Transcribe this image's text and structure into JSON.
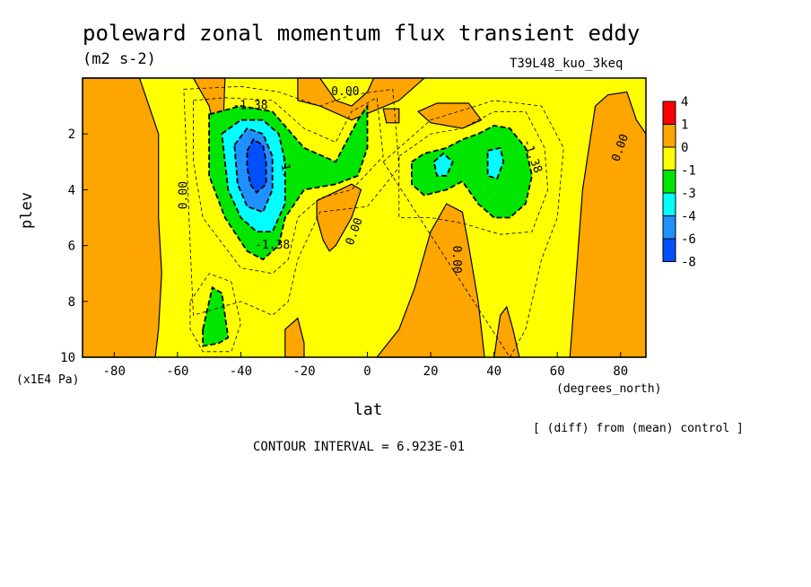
{
  "title": "poleward zonal momentum flux transient eddy",
  "units": "(m2 s-2)",
  "run_label": "T39L48_kuo_3keq",
  "footer_note": "[ (diff) from (mean) control ]",
  "contour_interval": "CONTOUR INTERVAL = 6.923E-01",
  "colors": {
    "c_red": "#ff0000",
    "c_orange": "#ffa500",
    "c_yellow": "#ffff00",
    "c_green": "#00e600",
    "c_cyan": "#00ffff",
    "c_lightblue": "#1e90ff",
    "c_blue": "#0050ff"
  },
  "chart_data": {
    "type": "heatmap",
    "title": "poleward zonal momentum flux transient eddy",
    "xlabel": "lat",
    "xunits": "(degrees_north)",
    "ylabel": "plev",
    "yunits": "(x1E4 Pa)",
    "xlim": [
      -90,
      88
    ],
    "ylim": [
      10,
      0
    ],
    "x_ticks": [
      -80,
      -60,
      -40,
      -20,
      0,
      20,
      40,
      60,
      80
    ],
    "x_tick_labels": [
      "-80",
      "-60",
      "-40",
      "-20",
      "0",
      "20",
      "40",
      "60",
      "80"
    ],
    "y_ticks": [
      2,
      4,
      6,
      8,
      10
    ],
    "y_tick_labels": [
      "2",
      "4",
      "6",
      "8",
      "10"
    ],
    "background_level": "0 to -1",
    "contour_interval": 0.6923,
    "colorbar": {
      "boundaries": [
        "4",
        "1",
        "0",
        "-1",
        "-3",
        "-4",
        "-6",
        "-8"
      ],
      "colors": [
        "#ff0000",
        "#ffa500",
        "#ffff00",
        "#00e600",
        "#00ffff",
        "#1e90ff",
        "#0050ff"
      ]
    },
    "regions": [
      {
        "level": "0 to 1",
        "color": "orange",
        "polygon": [
          [
            -90,
            0
          ],
          [
            -72,
            0
          ],
          [
            -66,
            2
          ],
          [
            -66,
            5
          ],
          [
            -65,
            7
          ],
          [
            -66,
            9
          ],
          [
            -67,
            10
          ],
          [
            -90,
            10
          ]
        ]
      },
      {
        "level": "0 to 1",
        "color": "orange",
        "polygon": [
          [
            -90,
            0
          ],
          [
            -55,
            0
          ],
          [
            -50,
            1
          ],
          [
            -48,
            2
          ],
          [
            -46,
            3
          ],
          [
            -45,
            0
          ]
        ]
      },
      {
        "level": "0 to 1",
        "color": "orange",
        "polygon": [
          [
            -22,
            0
          ],
          [
            -15,
            0
          ],
          [
            -10,
            0.8
          ],
          [
            -5,
            1
          ],
          [
            0,
            0.5
          ],
          [
            2,
            0
          ],
          [
            18,
            0
          ],
          [
            10,
            0.8
          ],
          [
            -5,
            1.5
          ],
          [
            -15,
            1
          ],
          [
            -22,
            0.8
          ]
        ]
      },
      {
        "level": "0 to 1",
        "color": "orange",
        "polygon": [
          [
            5,
            1.1
          ],
          [
            10,
            1.1
          ],
          [
            10,
            1.6
          ],
          [
            6,
            1.6
          ]
        ]
      },
      {
        "level": "0 to 1",
        "color": "orange",
        "polygon": [
          [
            16,
            1.2
          ],
          [
            22,
            0.9
          ],
          [
            32,
            0.9
          ],
          [
            36,
            1.5
          ],
          [
            30,
            1.8
          ],
          [
            20,
            1.6
          ]
        ]
      },
      {
        "level": "0 to 1",
        "color": "orange",
        "polygon": [
          [
            -16,
            4.4
          ],
          [
            -5,
            3.8
          ],
          [
            -2,
            4
          ],
          [
            -5,
            5
          ],
          [
            -10,
            6
          ],
          [
            -12,
            6.2
          ],
          [
            -14,
            5.8
          ],
          [
            -16,
            5
          ]
        ]
      },
      {
        "level": "0 to 1",
        "color": "orange",
        "polygon": [
          [
            3,
            10
          ],
          [
            10,
            9
          ],
          [
            15,
            7.5
          ],
          [
            20,
            5.5
          ],
          [
            25,
            4.5
          ],
          [
            30,
            4.8
          ],
          [
            32,
            6
          ],
          [
            35,
            8
          ],
          [
            37,
            10
          ]
        ]
      },
      {
        "level": "0 to 1",
        "color": "orange",
        "polygon": [
          [
            40,
            10
          ],
          [
            42,
            8.5
          ],
          [
            44,
            8.2
          ],
          [
            46,
            9
          ],
          [
            48,
            10
          ]
        ]
      },
      {
        "level": "0 to 1",
        "color": "orange",
        "polygon": [
          [
            -26,
            9
          ],
          [
            -22,
            8.6
          ],
          [
            -20,
            9.5
          ],
          [
            -20,
            10
          ],
          [
            -26,
            10
          ]
        ]
      },
      {
        "level": "0 to 1",
        "color": "orange",
        "polygon": [
          [
            64,
            10
          ],
          [
            66,
            7
          ],
          [
            68,
            4
          ],
          [
            72,
            1
          ],
          [
            76,
            0.6
          ],
          [
            82,
            0.5
          ],
          [
            85,
            1.5
          ],
          [
            88,
            2
          ],
          [
            88,
            10
          ]
        ]
      },
      {
        "level": "-1 to -3",
        "color": "green",
        "polygon": [
          [
            -50,
            1.3
          ],
          [
            -40,
            1
          ],
          [
            -30,
            1.2
          ],
          [
            -20,
            2.5
          ],
          [
            -10,
            3
          ],
          [
            -3,
            1.5
          ],
          [
            0,
            1
          ],
          [
            0,
            2.5
          ],
          [
            -3,
            3.5
          ],
          [
            -10,
            3.8
          ],
          [
            -20,
            4
          ],
          [
            -26,
            5
          ],
          [
            -28,
            6
          ],
          [
            -33,
            6.5
          ],
          [
            -38,
            6.2
          ],
          [
            -45,
            5
          ],
          [
            -50,
            3.5
          ]
        ]
      },
      {
        "level": "-1 to -3",
        "color": "green",
        "polygon": [
          [
            14,
            3
          ],
          [
            18,
            2.7
          ],
          [
            25,
            2.5
          ],
          [
            30,
            2.2
          ],
          [
            35,
            2
          ],
          [
            40,
            1.7
          ],
          [
            45,
            1.8
          ],
          [
            50,
            2.5
          ],
          [
            52,
            3.5
          ],
          [
            50,
            4.5
          ],
          [
            45,
            5
          ],
          [
            40,
            5
          ],
          [
            35,
            4.5
          ],
          [
            30,
            3.7
          ],
          [
            25,
            4
          ],
          [
            18,
            4.2
          ],
          [
            14,
            3.8
          ]
        ]
      },
      {
        "level": "-1 to -3",
        "color": "green",
        "polygon": [
          [
            -52,
            9
          ],
          [
            -49,
            7.5
          ],
          [
            -46,
            7.7
          ],
          [
            -45,
            8.5
          ],
          [
            -44,
            9.3
          ],
          [
            -47,
            9.5
          ],
          [
            -52,
            9.6
          ]
        ]
      },
      {
        "level": "-3 to -4",
        "color": "cyan",
        "polygon": [
          [
            -46,
            2
          ],
          [
            -40,
            1.5
          ],
          [
            -33,
            1.5
          ],
          [
            -28,
            2
          ],
          [
            -26,
            3
          ],
          [
            -26,
            4.5
          ],
          [
            -30,
            5.5
          ],
          [
            -35,
            5.5
          ],
          [
            -40,
            5
          ],
          [
            -44,
            4
          ],
          [
            -45,
            3
          ]
        ]
      },
      {
        "level": "-3 to -4",
        "color": "cyan",
        "polygon": [
          [
            21,
            3
          ],
          [
            24,
            2.7
          ],
          [
            27,
            3
          ],
          [
            25,
            3.5
          ],
          [
            22,
            3.5
          ]
        ]
      },
      {
        "level": "-3 to -4",
        "color": "cyan",
        "polygon": [
          [
            38,
            2.6
          ],
          [
            42,
            2.5
          ],
          [
            43,
            3
          ],
          [
            41,
            3.6
          ],
          [
            38,
            3.5
          ]
        ]
      },
      {
        "level": "-4 to -6",
        "color": "lightblue",
        "polygon": [
          [
            -42,
            2.4
          ],
          [
            -38,
            1.8
          ],
          [
            -33,
            2
          ],
          [
            -30,
            2.8
          ],
          [
            -30,
            4
          ],
          [
            -33,
            4.8
          ],
          [
            -38,
            4.6
          ],
          [
            -41,
            3.8
          ]
        ]
      },
      {
        "level": "-6 to -8",
        "color": "blue",
        "polygon": [
          [
            -38,
            2.6
          ],
          [
            -36,
            2.2
          ],
          [
            -33,
            2.4
          ],
          [
            -32,
            3
          ],
          [
            -32,
            3.8
          ],
          [
            -35,
            4.1
          ],
          [
            -37,
            3.8
          ],
          [
            -38,
            3.2
          ]
        ]
      }
    ],
    "contour_labels": [
      {
        "text": "0.00",
        "x": -58,
        "y": 4.2,
        "rotate": -90
      },
      {
        "text": "-1.38",
        "x": -37,
        "y": 1.0,
        "rotate": 0
      },
      {
        "text": "-1.38",
        "x": -30,
        "y": 6.0,
        "rotate": 0
      },
      {
        "text": "0.00",
        "x": -7,
        "y": 0.5,
        "rotate": 0
      },
      {
        "text": "0.00",
        "x": -4,
        "y": 5.5,
        "rotate": -70
      },
      {
        "text": "0.00",
        "x": 28,
        "y": 6.5,
        "rotate": 90
      },
      {
        "text": "-1.38",
        "x": 52,
        "y": 2.8,
        "rotate": 70
      },
      {
        "text": "0.00",
        "x": 80,
        "y": 2.5,
        "rotate": -70
      },
      {
        "text": "-1.",
        "x": -26,
        "y": 3.2,
        "rotate": 80
      }
    ],
    "dashed_contours": [
      [
        [
          -55,
          0.8
        ],
        [
          -45,
          0.7
        ],
        [
          -30,
          0.8
        ],
        [
          -20,
          1.8
        ],
        [
          -10,
          2.3
        ],
        [
          -5,
          1.2
        ],
        [
          3,
          0.7
        ],
        [
          5,
          2.8
        ],
        [
          -5,
          4
        ],
        [
          -15,
          4.3
        ],
        [
          -22,
          5
        ],
        [
          -25,
          6.5
        ],
        [
          -30,
          7
        ],
        [
          -40,
          6.8
        ],
        [
          -52,
          5
        ],
        [
          -55,
          3
        ]
      ],
      [
        [
          -58,
          0.4
        ],
        [
          -40,
          0.3
        ],
        [
          -28,
          0.5
        ],
        [
          -15,
          1.0
        ],
        [
          -5,
          0.6
        ],
        [
          8,
          0.4
        ],
        [
          10,
          3.2
        ],
        [
          0,
          4.6
        ],
        [
          -15,
          4.8
        ],
        [
          -22,
          6.5
        ],
        [
          -25,
          8
        ],
        [
          -30,
          8.5
        ],
        [
          -40,
          8
        ],
        [
          -55,
          8.5
        ],
        [
          -56,
          6
        ]
      ],
      [
        [
          10,
          2.8
        ],
        [
          20,
          2
        ],
        [
          30,
          1.8
        ],
        [
          40,
          1.2
        ],
        [
          50,
          1.2
        ],
        [
          56,
          2.5
        ],
        [
          57,
          4
        ],
        [
          52,
          5.5
        ],
        [
          42,
          5.6
        ],
        [
          30,
          5.2
        ],
        [
          20,
          5
        ],
        [
          10,
          5
        ]
      ],
      [
        [
          5,
          3
        ],
        [
          20,
          1.5
        ],
        [
          40,
          0.8
        ],
        [
          55,
          1
        ],
        [
          62,
          2.5
        ],
        [
          60,
          5
        ],
        [
          55,
          6.5
        ],
        [
          50,
          9
        ],
        [
          45,
          10
        ]
      ],
      [
        [
          -56,
          8
        ],
        [
          -50,
          7
        ],
        [
          -43,
          7.3
        ],
        [
          -40,
          8.8
        ],
        [
          -43,
          9.8
        ],
        [
          -52,
          9.8
        ],
        [
          -56,
          9
        ]
      ]
    ]
  }
}
